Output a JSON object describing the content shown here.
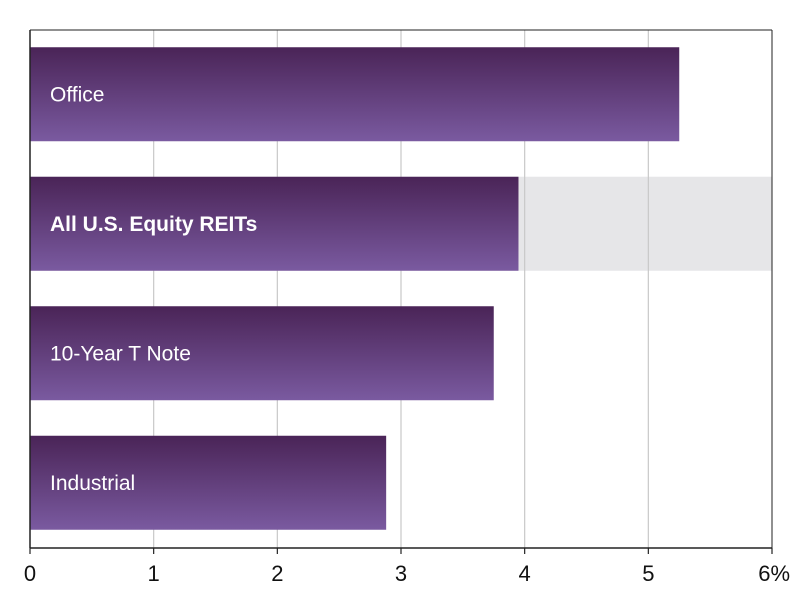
{
  "chart_data": {
    "type": "bar",
    "orientation": "horizontal",
    "categories": [
      "Office",
      "All U.S. Equity REITs",
      "10-Year T Note",
      "Industrial"
    ],
    "values": [
      5.25,
      3.95,
      3.75,
      2.88
    ],
    "highlight_category": "All U.S. Equity REITs",
    "xlim": [
      0,
      6
    ],
    "xticks": [
      "0",
      "1",
      "2",
      "3",
      "4",
      "5",
      "6%"
    ],
    "grid": "vertical",
    "colors": {
      "bar_top": "#4a2457",
      "bar_bottom": "#7a5aa0",
      "highlight_band": "#e6e6e8",
      "gridline": "#c8c8c8",
      "axis": "#222222"
    }
  }
}
